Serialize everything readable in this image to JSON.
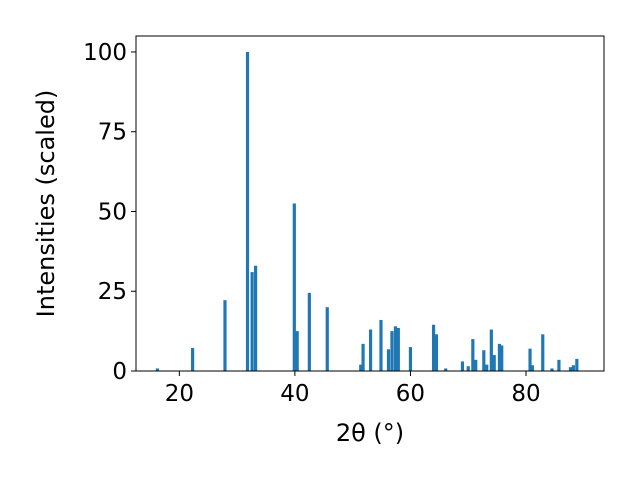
{
  "chart_data": {
    "type": "bar",
    "xlabel": "2θ (°)",
    "ylabel": "Intensities (scaled)",
    "xlim": [
      12.5,
      93.5
    ],
    "ylim": [
      0,
      105
    ],
    "xticks": [
      20,
      40,
      60,
      80
    ],
    "yticks": [
      0,
      25,
      50,
      75,
      100
    ],
    "bar_color": "#1f77b4",
    "grid": false,
    "x": [
      16.2,
      22.3,
      27.9,
      31.8,
      32.6,
      33.2,
      39.9,
      40.4,
      42.5,
      45.6,
      51.4,
      51.8,
      53.1,
      54.9,
      56.2,
      56.8,
      57.4,
      57.9,
      60.0,
      64.0,
      64.5,
      66.1,
      69.0,
      70.0,
      70.8,
      71.3,
      72.7,
      73.2,
      74.0,
      74.5,
      75.4,
      75.8,
      80.7,
      81.1,
      82.9,
      84.5,
      85.7,
      87.7,
      88.2,
      88.8
    ],
    "values": [
      0.8,
      7.2,
      22.2,
      100,
      31,
      33,
      52.5,
      12.5,
      24.5,
      20,
      2,
      8.5,
      13,
      16,
      6.8,
      12.5,
      14,
      13.5,
      7.5,
      14.5,
      11.5,
      0.8,
      3,
      1.5,
      10,
      3.5,
      6.5,
      2,
      13,
      5,
      8.5,
      8,
      7,
      1.8,
      11.5,
      0.8,
      3.5,
      1.2,
      1.8,
      3.8
    ],
    "bar_width": 0.55
  }
}
